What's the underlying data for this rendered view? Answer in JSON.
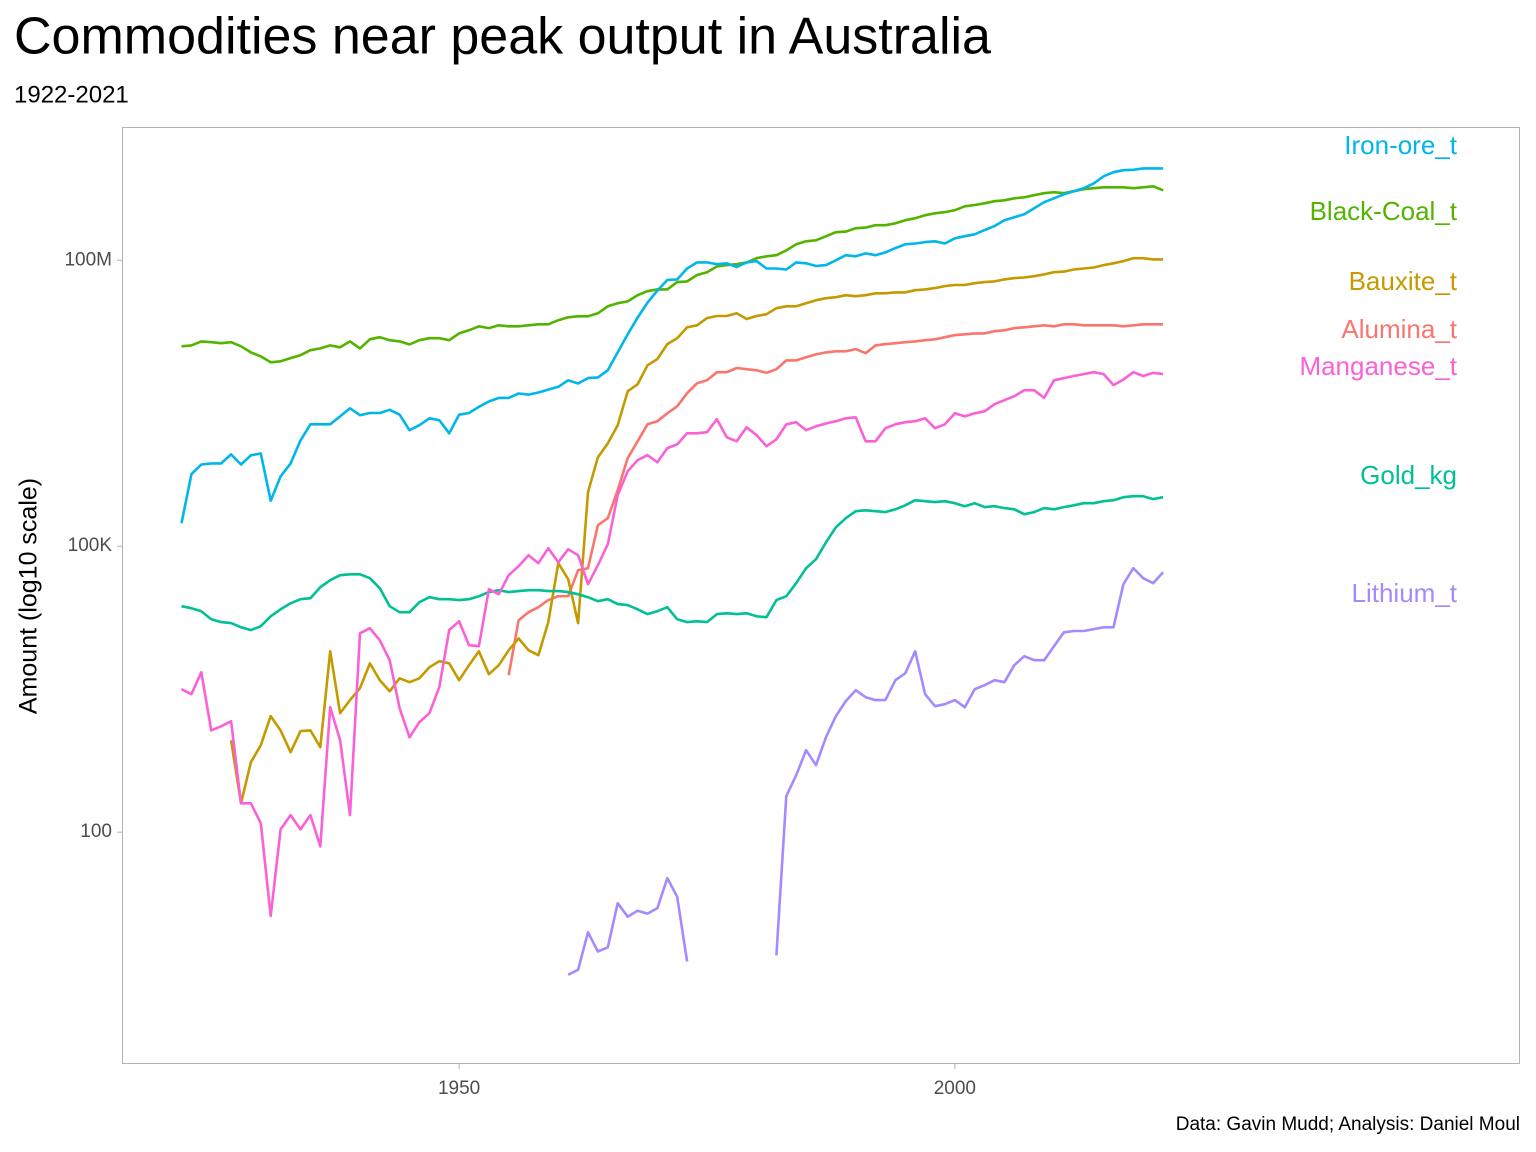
{
  "chart_data": {
    "type": "line",
    "title": "Commodities near peak output in Australia",
    "subtitle": "1922-2021",
    "y_label": "Amount (log10 scale)",
    "caption": "Data: Gavin Mudd; Analysis: Daniel Moul",
    "y_scale": "log",
    "grid": false,
    "xlim": [
      1916,
      2057
    ],
    "xticks": [
      1950,
      2000
    ],
    "ylim": [
      0.37,
      2500000000
    ],
    "yticks": [
      100,
      {
        "value": 100000,
        "label": "100K"
      },
      {
        "value": 100000000,
        "label": "100M"
      }
    ],
    "x": [
      1922,
      1923,
      1924,
      1925,
      1926,
      1927,
      1928,
      1929,
      1930,
      1931,
      1932,
      1933,
      1934,
      1935,
      1936,
      1937,
      1938,
      1939,
      1940,
      1941,
      1942,
      1943,
      1944,
      1945,
      1946,
      1947,
      1948,
      1949,
      1950,
      1951,
      1952,
      1953,
      1954,
      1955,
      1956,
      1957,
      1958,
      1959,
      1960,
      1961,
      1962,
      1963,
      1964,
      1965,
      1966,
      1967,
      1968,
      1969,
      1970,
      1971,
      1972,
      1973,
      1974,
      1975,
      1976,
      1977,
      1978,
      1979,
      1980,
      1981,
      1982,
      1983,
      1984,
      1985,
      1986,
      1987,
      1988,
      1989,
      1990,
      1991,
      1992,
      1993,
      1994,
      1995,
      1996,
      1997,
      1998,
      1999,
      2000,
      2001,
      2002,
      2003,
      2004,
      2005,
      2006,
      2007,
      2008,
      2009,
      2010,
      2011,
      2012,
      2013,
      2014,
      2015,
      2016,
      2017,
      2018,
      2019,
      2020,
      2021
    ],
    "series": [
      {
        "name": "Alumina_t",
        "color": "#F8766D",
        "values": [
          null,
          null,
          null,
          null,
          null,
          null,
          null,
          null,
          null,
          null,
          null,
          null,
          null,
          null,
          null,
          null,
          null,
          null,
          null,
          null,
          null,
          null,
          null,
          null,
          null,
          null,
          null,
          null,
          null,
          null,
          null,
          null,
          null,
          4440,
          16700,
          20300,
          22900,
          27200,
          29900,
          29900,
          56000,
          58800,
          166000,
          197000,
          387000,
          838000,
          1260000,
          1900000,
          2050000,
          2480000,
          2940000,
          4030000,
          5130000,
          5500000,
          6700000,
          6700000,
          7400000,
          7200000,
          7000000,
          6600000,
          7200000,
          8900000,
          8900000,
          9600000,
          10300000,
          10800000,
          11100000,
          11100000,
          11700000,
          10600000,
          12800000,
          13200000,
          13500000,
          13800000,
          14100000,
          14500000,
          14800000,
          15600000,
          16400000,
          16700000,
          17100000,
          17100000,
          18000000,
          18400000,
          19400000,
          19800000,
          20300000,
          20800000,
          20300000,
          21300000,
          21300000,
          20800000,
          20800000,
          20800000,
          20800000,
          20300000,
          20800000,
          21300000,
          21300000,
          21300000
        ]
      },
      {
        "name": "Bauxite_t",
        "color": "#C49A00",
        "values": [
          null,
          null,
          null,
          null,
          null,
          920,
          201,
          542,
          818,
          1650,
          1170,
          690,
          1150,
          1170,
          780,
          7900,
          1770,
          2430,
          3240,
          5900,
          3930,
          3010,
          4120,
          3750,
          4120,
          5380,
          6220,
          5900,
          3930,
          5650,
          7900,
          4540,
          5650,
          8110,
          10800,
          8110,
          7190,
          16000,
          66400,
          45100,
          15600,
          369000,
          859000,
          1200000,
          1860000,
          4230000,
          5000000,
          7900000,
          9200000,
          13200000,
          15200000,
          19800000,
          20800000,
          24700000,
          26000000,
          26000000,
          27800000,
          24200000,
          26000000,
          27200000,
          31400000,
          32900000,
          32900000,
          35400000,
          38100000,
          40000000,
          41000000,
          43000000,
          42000000,
          43000000,
          45000000,
          45000000,
          46000000,
          46000000,
          48500000,
          49500000,
          51000000,
          53500000,
          55000000,
          55000000,
          57500000,
          59000000,
          60000000,
          63000000,
          65000000,
          66000000,
          68000000,
          71000000,
          75000000,
          76000000,
          80000000,
          82000000,
          84000000,
          89000000,
          93000000,
          98000000,
          105000000,
          105000000,
          102000000,
          102000000
        ]
      },
      {
        "name": "Black-Coal_t",
        "color": "#53B400",
        "values": [
          12500000,
          12800000,
          14100000,
          13800000,
          13500000,
          13800000,
          12500000,
          10800000,
          9800000,
          8500000,
          8700000,
          9400000,
          10100000,
          11400000,
          11900000,
          12800000,
          12200000,
          14100000,
          11900000,
          14800000,
          15600000,
          14500000,
          14100000,
          13100000,
          14500000,
          15200000,
          15200000,
          14500000,
          17100000,
          18400000,
          20300000,
          19400000,
          20800000,
          20300000,
          20300000,
          20800000,
          21300000,
          21300000,
          23500000,
          25200000,
          25800000,
          25800000,
          27800000,
          32900000,
          35400000,
          37000000,
          43000000,
          47300000,
          49500000,
          49500000,
          59000000,
          60000000,
          70000000,
          75000000,
          86000000,
          89000000,
          91000000,
          95000000,
          105000000,
          110000000,
          113000000,
          127000000,
          147000000,
          158000000,
          162000000,
          179000000,
          197000000,
          200000000,
          217000000,
          220000000,
          233000000,
          233000000,
          244000000,
          263000000,
          276000000,
          297000000,
          311000000,
          320000000,
          335000000,
          368000000,
          380000000,
          396000000,
          416000000,
          426000000,
          447000000,
          458000000,
          481000000,
          505000000,
          517000000,
          505000000,
          530000000,
          556000000,
          570000000,
          583000000,
          583000000,
          583000000,
          570000000,
          583000000,
          597000000,
          542000000
        ]
      },
      {
        "name": "Gold_kg",
        "color": "#00C094",
        "values": [
          23500,
          22400,
          20800,
          17100,
          16000,
          15600,
          14100,
          13200,
          14500,
          18400,
          21800,
          25200,
          27800,
          28500,
          37200,
          44000,
          49700,
          50800,
          50800,
          46200,
          36300,
          23500,
          20300,
          20300,
          25900,
          29200,
          27800,
          27800,
          27200,
          27800,
          29900,
          33000,
          34600,
          33000,
          33800,
          34600,
          34600,
          33800,
          33800,
          33000,
          31400,
          29200,
          26500,
          27800,
          24700,
          24100,
          21800,
          19400,
          20800,
          22900,
          17100,
          16000,
          16300,
          16000,
          19400,
          19800,
          19400,
          19800,
          18400,
          18000,
          27200,
          29900,
          40900,
          58800,
          73100,
          110000,
          158000,
          197000,
          233000,
          238000,
          233000,
          228000,
          244000,
          269000,
          304000,
          297000,
          290000,
          297000,
          283000,
          263000,
          283000,
          257000,
          263000,
          251000,
          244000,
          217000,
          228000,
          251000,
          244000,
          257000,
          269000,
          283000,
          283000,
          297000,
          304000,
          327000,
          335000,
          335000,
          312000,
          327000
        ]
      },
      {
        "name": "Iron-ore_t",
        "color": "#00B6EB",
        "values": [
          174000,
          570000,
          720000,
          740000,
          740000,
          920000,
          720000,
          900000,
          940000,
          300000,
          540000,
          740000,
          1290000,
          1900000,
          1900000,
          1900000,
          2300000,
          2800000,
          2370000,
          2500000,
          2500000,
          2700000,
          2400000,
          1650000,
          1860000,
          2200000,
          2100000,
          1530000,
          2400000,
          2500000,
          2900000,
          3300000,
          3600000,
          3600000,
          4000000,
          3900000,
          4100000,
          4400000,
          4700000,
          5500000,
          5100000,
          5800000,
          5900000,
          7000000,
          10800000,
          16700000,
          25000000,
          36000000,
          48000000,
          62000000,
          63000000,
          82000000,
          95000000,
          95000000,
          91000000,
          93000000,
          85000000,
          95000000,
          98000000,
          82000000,
          82000000,
          80000000,
          95000000,
          93000000,
          87000000,
          89000000,
          100000000,
          113000000,
          110000000,
          118000000,
          113000000,
          121000000,
          134000000,
          147000000,
          150000000,
          155000000,
          158000000,
          150000000,
          170000000,
          179000000,
          187000000,
          207000000,
          228000000,
          263000000,
          283000000,
          304000000,
          351000000,
          406000000,
          447000000,
          492000000,
          530000000,
          570000000,
          640000000,
          760000000,
          840000000,
          880000000,
          890000000,
          920000000,
          920000000,
          920000000
        ]
      },
      {
        "name": "Lithium_t",
        "color": "#A58AFF",
        "values": [
          null,
          null,
          null,
          null,
          null,
          null,
          null,
          null,
          null,
          null,
          null,
          null,
          null,
          null,
          null,
          null,
          null,
          null,
          null,
          null,
          null,
          null,
          null,
          null,
          null,
          null,
          null,
          null,
          null,
          null,
          null,
          null,
          null,
          null,
          null,
          null,
          null,
          null,
          null,
          3.2,
          3.6,
          8.9,
          5.6,
          6.2,
          18,
          13,
          15,
          14,
          16,
          33,
          21,
          4.4,
          null,
          null,
          null,
          null,
          null,
          null,
          null,
          null,
          5.1,
          239,
          396,
          725,
          505,
          993,
          1650,
          2370,
          3090,
          2610,
          2430,
          2430,
          3930,
          4660,
          7900,
          2800,
          2100,
          2200,
          2430,
          2050,
          3160,
          3480,
          3930,
          3750,
          5650,
          7020,
          6370,
          6370,
          8940,
          12500,
          12900,
          12900,
          13500,
          14100,
          14100,
          40000,
          58800,
          46200,
          40900,
          53400
        ]
      },
      {
        "name": "Manganese_t",
        "color": "#FB61D7",
        "values": [
          3160,
          2800,
          4770,
          1170,
          1290,
          1460,
          201,
          201,
          124,
          13.2,
          107,
          151,
          107,
          151,
          71,
          2050,
          920,
          151,
          12200,
          13800,
          10300,
          6370,
          2000,
          990,
          1430,
          1770,
          3320,
          13200,
          16300,
          9160,
          8940,
          35400,
          31400,
          49700,
          61700,
          80500,
          66400,
          95300,
          67900,
          93100,
          80500,
          40000,
          63200,
          105000,
          343000,
          612000,
          798000,
          902000,
          760000,
          1070000,
          1170000,
          1530000,
          1530000,
          1570000,
          2150000,
          1390000,
          1260000,
          1770000,
          1460000,
          1120000,
          1320000,
          1900000,
          2000000,
          1650000,
          1810000,
          1940000,
          2050000,
          2200000,
          2250000,
          1260000,
          1260000,
          1730000,
          1900000,
          2000000,
          2050000,
          2200000,
          1730000,
          1900000,
          2480000,
          2300000,
          2480000,
          2600000,
          3090000,
          3400000,
          3750000,
          4330000,
          4330000,
          3600000,
          5500000,
          5800000,
          6100000,
          6400000,
          6700000,
          6400000,
          4900000,
          5600000,
          6700000,
          6100000,
          6600000,
          6400000
        ]
      }
    ]
  }
}
